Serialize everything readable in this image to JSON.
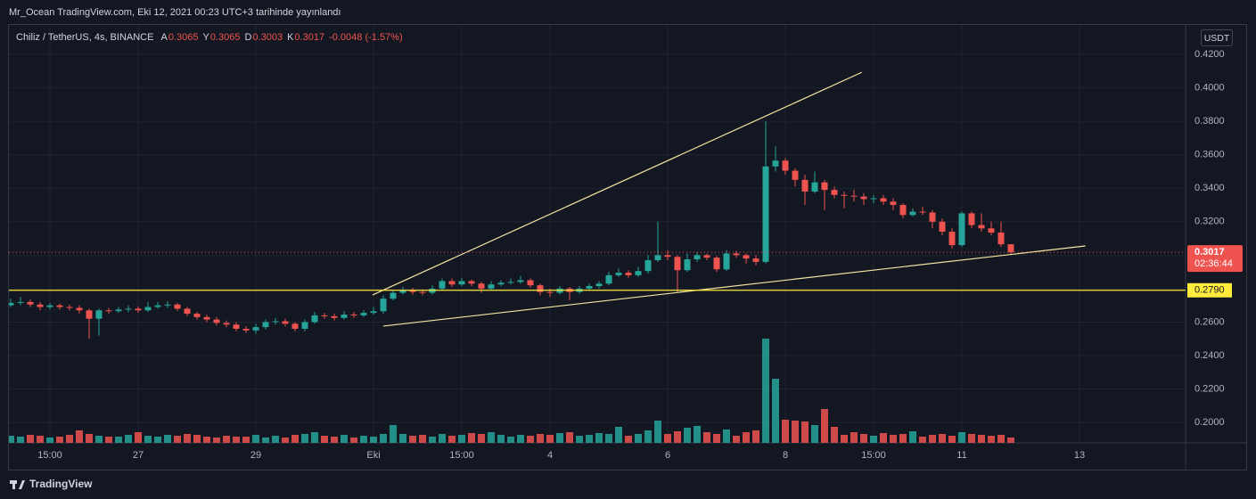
{
  "header": {
    "publisher": "Mr_Ocean TradingView.com, Eki 12, 2021 00:23 UTC+3 tarihinde yayınlandı"
  },
  "brand": "TradingView",
  "chart_data": {
    "type": "candlestick",
    "title": "Chiliz / TetherUS, 4s, BINANCE",
    "legend_values": [
      {
        "key": "A",
        "value": 0.3065
      },
      {
        "key": "Y",
        "value": 0.3065
      },
      {
        "key": "D",
        "value": 0.3003
      },
      {
        "key": "K",
        "value": 0.3017
      }
    ],
    "change": "-0.0048 (-1.57%)",
    "currency": "USDT",
    "up_color": "#26a69a",
    "down_color": "#ef5350",
    "ylim": [
      0.1878,
      0.4376
    ],
    "yticks": [
      {
        "value": 0.2,
        "label": "0.2000"
      },
      {
        "value": 0.22,
        "label": "0.2200"
      },
      {
        "value": 0.24,
        "label": "0.2400"
      },
      {
        "value": 0.26,
        "label": "0.2600"
      },
      {
        "value": 0.28,
        "label": "0.2800"
      },
      {
        "value": 0.3,
        "label": "0.3000"
      },
      {
        "value": 0.32,
        "label": "0.3200"
      },
      {
        "value": 0.34,
        "label": "0.3400"
      },
      {
        "value": 0.36,
        "label": "0.3600"
      },
      {
        "value": 0.38,
        "label": "0.3800"
      },
      {
        "value": 0.4,
        "label": "0.4000"
      },
      {
        "value": 0.42,
        "label": "0.4200"
      }
    ],
    "grid": true,
    "categories": [
      null,
      null,
      null,
      null,
      "15:00",
      null,
      null,
      null,
      null,
      null,
      null,
      null,
      null,
      "27",
      null,
      null,
      null,
      null,
      null,
      null,
      null,
      null,
      null,
      null,
      null,
      "29",
      null,
      null,
      null,
      null,
      null,
      null,
      null,
      null,
      null,
      null,
      null,
      "Eki",
      null,
      null,
      null,
      null,
      null,
      null,
      null,
      null,
      "15:00",
      null,
      null,
      null,
      null,
      null,
      null,
      null,
      null,
      "4",
      null,
      null,
      null,
      null,
      null,
      null,
      null,
      null,
      null,
      null,
      null,
      "6",
      null,
      null,
      null,
      null,
      null,
      null,
      null,
      null,
      null,
      null,
      null,
      "8",
      null,
      null,
      null,
      null,
      null,
      null,
      null,
      null,
      "15:00",
      null,
      null,
      null,
      null,
      null,
      null,
      null,
      null,
      "11",
      null,
      null,
      null,
      null,
      null,
      null,
      null,
      null,
      null,
      null,
      null,
      "13"
    ],
    "open": [
      0.27,
      0.2715,
      0.272,
      0.2705,
      0.269,
      0.27,
      0.269,
      0.2685,
      0.267,
      0.262,
      0.267,
      0.2665,
      0.2675,
      0.268,
      0.267,
      0.269,
      0.27,
      0.2705,
      0.268,
      0.265,
      0.263,
      0.2615,
      0.2595,
      0.2585,
      0.256,
      0.255,
      0.257,
      0.26,
      0.2605,
      0.259,
      0.256,
      0.26,
      0.264,
      0.2635,
      0.2625,
      0.2645,
      0.264,
      0.2655,
      0.2665,
      0.274,
      0.2775,
      0.279,
      0.278,
      0.2775,
      0.28,
      0.2845,
      0.2825,
      0.2845,
      0.283,
      0.28,
      0.2825,
      0.2835,
      0.284,
      0.285,
      0.282,
      0.278,
      0.2775,
      0.28,
      0.278,
      0.28,
      0.2815,
      0.283,
      0.288,
      0.2895,
      0.288,
      0.2905,
      0.297,
      0.3,
      0.299,
      0.291,
      0.2975,
      0.3,
      0.2985,
      0.2915,
      0.301,
      0.3,
      0.298,
      0.296,
      0.353,
      0.3565,
      0.3505,
      0.345,
      0.338,
      0.3435,
      0.339,
      0.336,
      0.3355,
      0.335,
      0.3335,
      0.334,
      0.332,
      0.33,
      0.324,
      0.326,
      0.3255,
      0.32,
      0.314,
      0.306,
      0.325,
      0.318,
      0.316,
      0.3135,
      0.3065,
      null,
      null,
      null,
      null,
      null,
      null,
      null
    ],
    "high": [
      0.274,
      0.275,
      0.2735,
      0.272,
      0.2715,
      0.271,
      0.2705,
      0.27,
      0.268,
      0.268,
      0.2685,
      0.269,
      0.27,
      0.2695,
      0.272,
      0.272,
      0.2725,
      0.2715,
      0.269,
      0.266,
      0.2645,
      0.263,
      0.261,
      0.26,
      0.2575,
      0.259,
      0.2615,
      0.2625,
      0.262,
      0.26,
      0.2615,
      0.266,
      0.2655,
      0.265,
      0.2665,
      0.266,
      0.267,
      0.269,
      0.276,
      0.279,
      0.281,
      0.2805,
      0.2795,
      0.282,
      0.286,
      0.286,
      0.2865,
      0.2855,
      0.284,
      0.2845,
      0.285,
      0.286,
      0.2875,
      0.286,
      0.283,
      0.28,
      0.2815,
      0.281,
      0.2815,
      0.283,
      0.2845,
      0.29,
      0.292,
      0.291,
      0.293,
      0.3,
      0.32,
      0.303,
      0.3,
      0.301,
      0.302,
      0.301,
      0.2995,
      0.303,
      0.3025,
      0.301,
      0.3,
      0.38,
      0.365,
      0.358,
      0.352,
      0.348,
      0.35,
      0.345,
      0.341,
      0.338,
      0.339,
      0.337,
      0.336,
      0.336,
      0.334,
      0.331,
      0.328,
      0.329,
      0.327,
      0.322,
      0.316,
      0.326,
      0.326,
      0.325,
      0.32,
      0.32,
      0.3065,
      null,
      null,
      null,
      null,
      null,
      null,
      null
    ],
    "low": [
      0.269,
      0.27,
      0.269,
      0.267,
      0.2675,
      0.2675,
      0.267,
      0.265,
      0.25,
      0.252,
      0.265,
      0.2655,
      0.266,
      0.2655,
      0.266,
      0.268,
      0.2685,
      0.2665,
      0.2635,
      0.2615,
      0.26,
      0.258,
      0.257,
      0.2545,
      0.2535,
      0.253,
      0.2555,
      0.2585,
      0.2575,
      0.2545,
      0.2545,
      0.259,
      0.262,
      0.261,
      0.2615,
      0.2625,
      0.263,
      0.2645,
      0.265,
      0.273,
      0.2765,
      0.2765,
      0.276,
      0.2765,
      0.279,
      0.281,
      0.2815,
      0.2815,
      0.2775,
      0.279,
      0.2815,
      0.2825,
      0.283,
      0.2805,
      0.276,
      0.275,
      0.2765,
      0.273,
      0.277,
      0.279,
      0.28,
      0.282,
      0.287,
      0.2865,
      0.287,
      0.289,
      0.296,
      0.297,
      0.278,
      0.29,
      0.296,
      0.297,
      0.29,
      0.2905,
      0.2985,
      0.295,
      0.294,
      0.295,
      0.35,
      0.348,
      0.341,
      0.33,
      0.337,
      0.327,
      0.334,
      0.328,
      0.332,
      0.33,
      0.331,
      0.33,
      0.327,
      0.322,
      0.323,
      0.324,
      0.316,
      0.312,
      0.304,
      0.305,
      0.316,
      0.314,
      0.312,
      0.305,
      0.3003,
      null,
      null,
      null,
      null,
      null,
      null,
      null
    ],
    "close": [
      0.2715,
      0.272,
      0.2705,
      0.269,
      0.27,
      0.269,
      0.2685,
      0.267,
      0.262,
      0.267,
      0.2665,
      0.2675,
      0.268,
      0.267,
      0.269,
      0.27,
      0.2705,
      0.268,
      0.265,
      0.263,
      0.2615,
      0.2595,
      0.2585,
      0.256,
      0.255,
      0.257,
      0.26,
      0.2605,
      0.259,
      0.256,
      0.26,
      0.264,
      0.2635,
      0.2625,
      0.2645,
      0.264,
      0.2655,
      0.2665,
      0.274,
      0.2775,
      0.279,
      0.278,
      0.2775,
      0.28,
      0.2845,
      0.2825,
      0.2845,
      0.283,
      0.28,
      0.2825,
      0.2835,
      0.284,
      0.285,
      0.282,
      0.278,
      0.2775,
      0.28,
      0.278,
      0.28,
      0.2815,
      0.283,
      0.288,
      0.2895,
      0.288,
      0.2905,
      0.297,
      0.3,
      0.299,
      0.291,
      0.2975,
      0.3,
      0.2985,
      0.2915,
      0.301,
      0.3,
      0.298,
      0.296,
      0.353,
      0.3565,
      0.3505,
      0.345,
      0.338,
      0.3435,
      0.339,
      0.336,
      0.3355,
      0.335,
      0.3335,
      0.334,
      0.332,
      0.33,
      0.324,
      0.326,
      0.3255,
      0.32,
      0.314,
      0.306,
      0.325,
      0.318,
      0.316,
      0.3135,
      0.3065,
      0.3017,
      null,
      null,
      null,
      null,
      null,
      null,
      null
    ],
    "volume": [
      8,
      7,
      9,
      8,
      6,
      7,
      9,
      14,
      10,
      8,
      7,
      7,
      9,
      12,
      8,
      7,
      9,
      8,
      10,
      9,
      7,
      6,
      8,
      7,
      7,
      9,
      6,
      8,
      6,
      9,
      10,
      12,
      8,
      7,
      9,
      6,
      8,
      7,
      10,
      20,
      10,
      8,
      9,
      7,
      10,
      8,
      9,
      11,
      10,
      12,
      9,
      7,
      9,
      8,
      10,
      9,
      11,
      12,
      8,
      9,
      11,
      10,
      18,
      8,
      10,
      14,
      25,
      10,
      13,
      17,
      19,
      12,
      10,
      15,
      8,
      12,
      14,
      117,
      72,
      26,
      25,
      24,
      20,
      38,
      18,
      9,
      12,
      10,
      8,
      11,
      9,
      10,
      13,
      7,
      9,
      10,
      8,
      12,
      10,
      9,
      8,
      9,
      6,
      null,
      null,
      null,
      null,
      null,
      null,
      null
    ],
    "trendlines": [
      {
        "from": [
          36.9,
          0.2762
        ],
        "to": [
          86.8,
          0.4093
        ],
        "color": "#f3e5a0"
      },
      {
        "from": [
          38,
          0.2576
        ],
        "to": [
          109.6,
          0.3055
        ],
        "color": "#f3e5a0"
      }
    ],
    "hline": {
      "value": 0.279,
      "label": "0.2790",
      "color": "#ffeb3b"
    },
    "last_price": 0.3017,
    "countdown": "02:36:44"
  }
}
